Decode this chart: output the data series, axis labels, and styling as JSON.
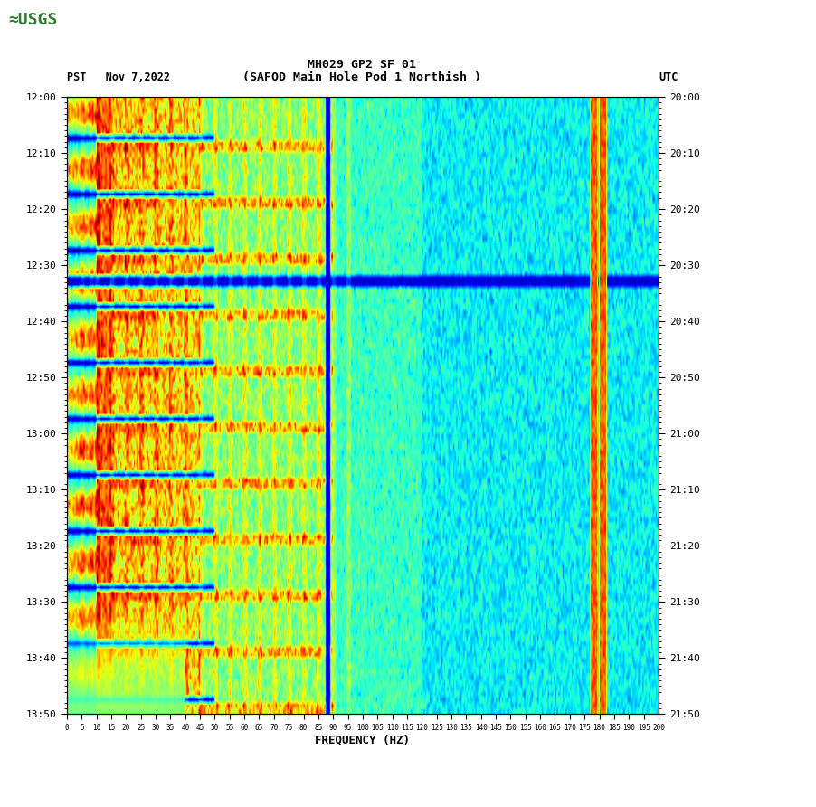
{
  "title_line1": "MH029 GP2 SF 01",
  "title_line2": "(SAFOD Main Hole Pod 1 Northish )",
  "left_label": "PST   Nov 7,2022",
  "right_label": "UTC",
  "xlabel": "FREQUENCY (HZ)",
  "freq_min": 0,
  "freq_max": 200,
  "freq_ticks": [
    0,
    5,
    10,
    15,
    20,
    25,
    30,
    35,
    40,
    45,
    50,
    55,
    60,
    65,
    70,
    75,
    80,
    85,
    90,
    95,
    100,
    105,
    110,
    115,
    120,
    125,
    130,
    135,
    140,
    145,
    150,
    155,
    160,
    165,
    170,
    175,
    180,
    185,
    190,
    195,
    200
  ],
  "time_ticks_pst": [
    "12:00",
    "12:10",
    "12:20",
    "12:30",
    "12:40",
    "12:50",
    "13:00",
    "13:10",
    "13:20",
    "13:30",
    "13:40",
    "13:50"
  ],
  "time_ticks_utc": [
    "20:00",
    "20:10",
    "20:20",
    "20:30",
    "20:40",
    "20:50",
    "21:00",
    "21:10",
    "21:20",
    "21:30",
    "21:40",
    "21:50"
  ],
  "bg_color": "#ffffff",
  "colormap": "jet",
  "n_time": 110,
  "n_freq": 400,
  "vmin": 0.0,
  "vmax": 1.0
}
